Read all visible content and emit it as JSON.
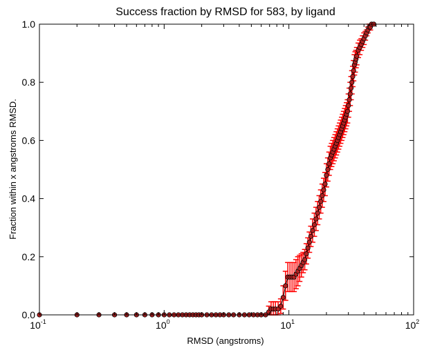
{
  "chart_data": {
    "type": "scatter",
    "title": "Success fraction by RMSD for 583, by ligand",
    "xlabel": "RMSD (angstroms)",
    "ylabel": "Fraction within x angstroms RMSD.",
    "xscale": "log",
    "xlim": [
      0.1,
      100
    ],
    "ylim": [
      0.0,
      1.0
    ],
    "x_ticks": [
      {
        "base": "10",
        "exp": "-1"
      },
      {
        "base": "10",
        "exp": "0"
      },
      {
        "base": "10",
        "exp": "1"
      },
      {
        "base": "10",
        "exp": "2"
      }
    ],
    "y_ticks": [
      "0.0",
      "0.2",
      "0.4",
      "0.6",
      "0.8",
      "1.0"
    ],
    "grid": false,
    "legend": "none",
    "colors": {
      "line": "#000000",
      "marker_fill": "#b22222",
      "marker_edge": "#000000",
      "error": "#ff0000"
    },
    "series": [
      {
        "marker": "circle",
        "points": [
          [
            0.1,
            0
          ],
          [
            0.2,
            0
          ],
          [
            0.3,
            0
          ],
          [
            0.4,
            0
          ],
          [
            0.5,
            0
          ],
          [
            0.6,
            0
          ],
          [
            0.7,
            0
          ],
          [
            0.8,
            0
          ],
          [
            0.9,
            0
          ],
          [
            1.0,
            0
          ],
          [
            1.1,
            0
          ],
          [
            1.2,
            0
          ],
          [
            1.3,
            0
          ],
          [
            1.4,
            0
          ],
          [
            1.5,
            0
          ],
          [
            1.6,
            0
          ],
          [
            1.7,
            0
          ],
          [
            1.8,
            0
          ],
          [
            1.9,
            0
          ],
          [
            2.0,
            0
          ],
          [
            2.2,
            0
          ],
          [
            2.4,
            0
          ],
          [
            2.6,
            0
          ],
          [
            2.8,
            0
          ],
          [
            3.0,
            0
          ],
          [
            3.3,
            0
          ],
          [
            3.6,
            0
          ],
          [
            4.0,
            0
          ],
          [
            4.4,
            0
          ],
          [
            4.8,
            0
          ],
          [
            5.2,
            0
          ],
          [
            5.6,
            0
          ],
          [
            6.0,
            0
          ],
          [
            6.5,
            0
          ],
          [
            6.9,
            0.01
          ],
          [
            7.2,
            0.02
          ],
          [
            7.5,
            0.02
          ],
          [
            7.8,
            0.02
          ],
          [
            8.2,
            0.02
          ],
          [
            8.6,
            0.03
          ],
          [
            9.0,
            0.06
          ],
          [
            9.4,
            0.1
          ],
          [
            9.8,
            0.13
          ],
          [
            10.2,
            0.13
          ],
          [
            10.6,
            0.13
          ],
          [
            11.0,
            0.13
          ],
          [
            11.4,
            0.14
          ],
          [
            11.8,
            0.15
          ],
          [
            12.2,
            0.16
          ],
          [
            12.6,
            0.17
          ],
          [
            13.0,
            0.18
          ],
          [
            13.4,
            0.19
          ],
          [
            13.8,
            0.21
          ],
          [
            14.2,
            0.23
          ],
          [
            14.6,
            0.25
          ],
          [
            15.0,
            0.27
          ],
          [
            15.5,
            0.29
          ],
          [
            16.0,
            0.31
          ],
          [
            16.5,
            0.33
          ],
          [
            17.0,
            0.35
          ],
          [
            17.5,
            0.37
          ],
          [
            18.0,
            0.39
          ],
          [
            18.5,
            0.41
          ],
          [
            19.0,
            0.43
          ],
          [
            19.5,
            0.45
          ],
          [
            20.0,
            0.48
          ],
          [
            20.5,
            0.5
          ],
          [
            21.0,
            0.52
          ],
          [
            21.5,
            0.54
          ],
          [
            22.0,
            0.55
          ],
          [
            22.5,
            0.56
          ],
          [
            23.0,
            0.57
          ],
          [
            23.5,
            0.58
          ],
          [
            24.0,
            0.59
          ],
          [
            24.5,
            0.6
          ],
          [
            25.0,
            0.61
          ],
          [
            25.5,
            0.62
          ],
          [
            26.0,
            0.63
          ],
          [
            26.5,
            0.64
          ],
          [
            27.0,
            0.65
          ],
          [
            27.5,
            0.66
          ],
          [
            28.0,
            0.67
          ],
          [
            28.5,
            0.68
          ],
          [
            29.0,
            0.69
          ],
          [
            29.5,
            0.7
          ],
          [
            30.0,
            0.72
          ],
          [
            30.5,
            0.74
          ],
          [
            31.0,
            0.76
          ],
          [
            31.5,
            0.78
          ],
          [
            32.0,
            0.8
          ],
          [
            32.5,
            0.82
          ],
          [
            33.0,
            0.84
          ],
          [
            33.5,
            0.86
          ],
          [
            34.0,
            0.87
          ],
          [
            34.5,
            0.88
          ],
          [
            35.0,
            0.89
          ],
          [
            36.0,
            0.91
          ],
          [
            37.0,
            0.92
          ],
          [
            38.0,
            0.93
          ],
          [
            39.0,
            0.94
          ],
          [
            40.0,
            0.95
          ],
          [
            41.0,
            0.96
          ],
          [
            42.0,
            0.97
          ],
          [
            43.0,
            0.98
          ],
          [
            44.0,
            0.99
          ],
          [
            45.0,
            0.99
          ],
          [
            46.0,
            1.0
          ],
          [
            48.0,
            1.0
          ],
          [
            60,
            1.0
          ],
          [
            75,
            1.0
          ],
          [
            100,
            1.0
          ]
        ],
        "error": [
          0,
          0,
          0,
          0,
          0,
          0,
          0,
          0,
          0,
          0,
          0,
          0,
          0,
          0,
          0,
          0,
          0,
          0,
          0,
          0,
          0,
          0,
          0,
          0,
          0,
          0,
          0,
          0,
          0,
          0,
          0,
          0,
          0,
          0,
          0.02,
          0.025,
          0.025,
          0.025,
          0.025,
          0.025,
          0.04,
          0.05,
          0.05,
          0.05,
          0.05,
          0.05,
          0.05,
          0.05,
          0.045,
          0.04,
          0.035,
          0.035,
          0.035,
          0.035,
          0.035,
          0.035,
          0.04,
          0.04,
          0.04,
          0.04,
          0.04,
          0.04,
          0.04,
          0.04,
          0.04,
          0.04,
          0.04,
          0.04,
          0.04,
          0.04,
          0.04,
          0.04,
          0.04,
          0.04,
          0.04,
          0.04,
          0.04,
          0.04,
          0.04,
          0.04,
          0.04,
          0.04,
          0.04,
          0.04,
          0.04,
          0.04,
          0.04,
          0.04,
          0.04,
          0.04,
          0.035,
          0.035,
          0.035,
          0.035,
          0.03,
          0.03,
          0.025,
          0.025,
          0.02,
          0.02,
          0.02,
          0.015,
          0.01,
          0.01,
          0.01,
          0.01,
          0,
          0,
          0,
          0,
          0
        ]
      }
    ]
  }
}
